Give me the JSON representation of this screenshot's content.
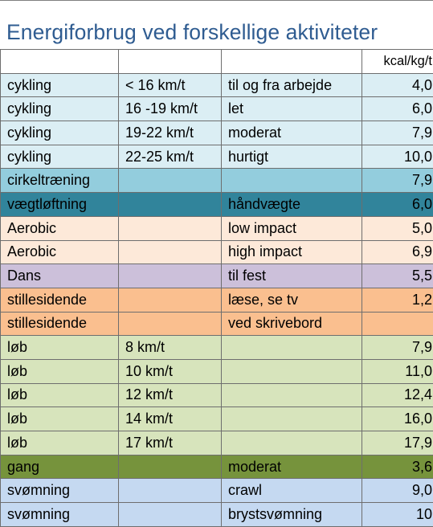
{
  "title": "Energiforbrug ved forskellige aktiviteter",
  "columns": {
    "unit_header": "kcal/kg/t"
  },
  "rows": [
    {
      "activity": "cykling",
      "speed": "< 16 km/t",
      "description": "til og fra arbejde",
      "value": "4,0",
      "color": "#dbeef4"
    },
    {
      "activity": "cykling",
      "speed": "16 -19 km/t",
      "description": "let",
      "value": "6,0",
      "color": "#dbeef4"
    },
    {
      "activity": "cykling",
      "speed": "19-22 km/t",
      "description": "moderat",
      "value": "7,9",
      "color": "#dbeef4"
    },
    {
      "activity": "cykling",
      "speed": "22-25 km/t",
      "description": "hurtigt",
      "value": "10,0",
      "color": "#dbeef4"
    },
    {
      "activity": "cirkeltræning",
      "speed": "",
      "description": "",
      "value": "7,9",
      "color": "#93cddd"
    },
    {
      "activity": "vægtløftning",
      "speed": "",
      "description": "håndvægte",
      "value": "6,0",
      "color": "#31849b"
    },
    {
      "activity": "Aerobic",
      "speed": "",
      "description": "low impact",
      "value": "5,0",
      "color": "#fde9d9"
    },
    {
      "activity": "Aerobic",
      "speed": "",
      "description": "high impact",
      "value": "6,9",
      "color": "#fde9d9"
    },
    {
      "activity": "Dans",
      "speed": "",
      "description": "til fest",
      "value": "5,5",
      "color": "#ccc0da"
    },
    {
      "activity": "stillesidende",
      "speed": "",
      "description": "læse, se tv",
      "value": "1,2",
      "color": "#fabf8f"
    },
    {
      "activity": "stillesidende",
      "speed": "",
      "description": "ved skrivebord",
      "value": "",
      "color": "#fabf8f"
    },
    {
      "activity": "løb",
      "speed": "8 km/t",
      "description": "",
      "value": "7,9",
      "color": "#d7e4bc"
    },
    {
      "activity": "løb",
      "speed": "10  km/t",
      "description": "",
      "value": "11,0",
      "color": "#d7e4bc"
    },
    {
      "activity": "løb",
      "speed": "12  km/t",
      "description": "",
      "value": "12,4",
      "color": "#d7e4bc"
    },
    {
      "activity": "løb",
      "speed": "14  km/t",
      "description": "",
      "value": "16,0",
      "color": "#d7e4bc"
    },
    {
      "activity": "løb",
      "speed": "17  km/t",
      "description": "",
      "value": "17,9",
      "color": "#d7e4bc"
    },
    {
      "activity": "gang",
      "speed": "",
      "description": "moderat",
      "value": "3,6",
      "color": "#76933c"
    },
    {
      "activity": "svømning",
      "speed": "",
      "description": "crawl",
      "value": "9,0",
      "color": "#c5d9f1"
    },
    {
      "activity": "svømning",
      "speed": "",
      "description": "brystsvømning",
      "value": "10",
      "color": "#c5d9f1"
    }
  ]
}
